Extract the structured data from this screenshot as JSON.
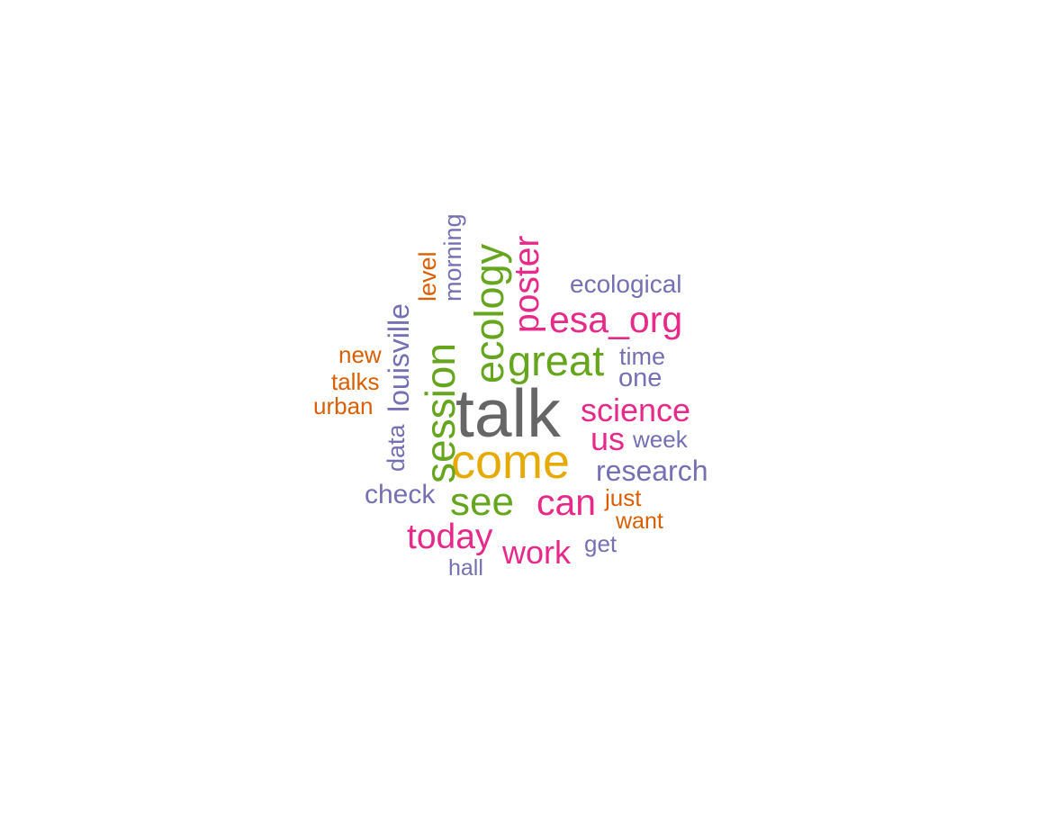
{
  "chart_data": {
    "type": "wordcloud",
    "palette": {
      "gray": "#666666",
      "gold": "#E6AB02",
      "green": "#66A61E",
      "pink": "#E7298A",
      "purple": "#7570B3",
      "orange": "#D95F02"
    },
    "words": [
      {
        "text": "talk",
        "color": "#666666"
      },
      {
        "text": "come",
        "color": "#E6AB02"
      },
      {
        "text": "great",
        "color": "#66A61E"
      },
      {
        "text": "session",
        "color": "#66A61E"
      },
      {
        "text": "ecology",
        "color": "#66A61E"
      },
      {
        "text": "see",
        "color": "#66A61E"
      },
      {
        "text": "esa_org",
        "color": "#E7298A"
      },
      {
        "text": "can",
        "color": "#E7298A"
      },
      {
        "text": "poster",
        "color": "#E7298A"
      },
      {
        "text": "science",
        "color": "#E7298A"
      },
      {
        "text": "today",
        "color": "#E7298A"
      },
      {
        "text": "us",
        "color": "#E7298A"
      },
      {
        "text": "work",
        "color": "#E7298A"
      },
      {
        "text": "research",
        "color": "#7570B3"
      },
      {
        "text": "louisville",
        "color": "#7570B3"
      },
      {
        "text": "ecological",
        "color": "#7570B3"
      },
      {
        "text": "check",
        "color": "#7570B3"
      },
      {
        "text": "morning",
        "color": "#7570B3"
      },
      {
        "text": "one",
        "color": "#7570B3"
      },
      {
        "text": "time",
        "color": "#7570B3"
      },
      {
        "text": "week",
        "color": "#7570B3"
      },
      {
        "text": "data",
        "color": "#7570B3"
      },
      {
        "text": "get",
        "color": "#7570B3"
      },
      {
        "text": "hall",
        "color": "#7570B3"
      },
      {
        "text": "level",
        "color": "#D95F02"
      },
      {
        "text": "new",
        "color": "#D95F02"
      },
      {
        "text": "talks",
        "color": "#D95F02"
      },
      {
        "text": "urban",
        "color": "#D95F02"
      },
      {
        "text": "just",
        "color": "#D95F02"
      },
      {
        "text": "want",
        "color": "#D95F02"
      }
    ]
  }
}
